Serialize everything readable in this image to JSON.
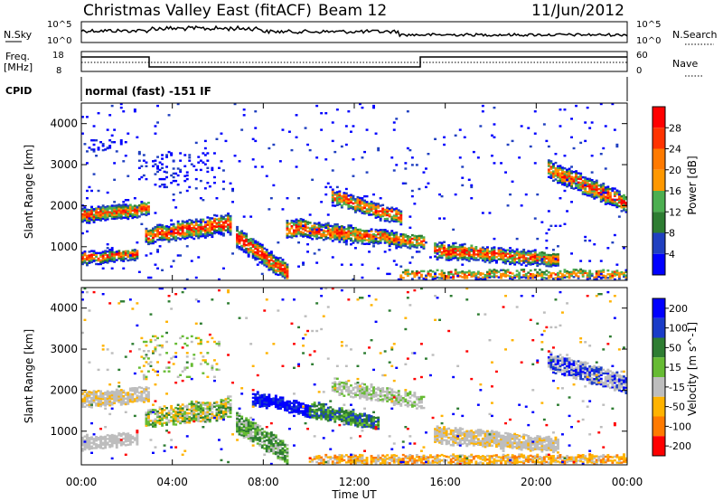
{
  "header": {
    "station": "Christmas Valley East (fitACF)",
    "beam": "Beam 12",
    "date": "11/Jun/2012"
  },
  "status_panels": {
    "nsky_label": "N.Sky",
    "nsky_ticks": [
      "10^5",
      "10^0"
    ],
    "nsearch_label": "N.Search",
    "nsearch_ticks": [
      "10^5",
      "10^0"
    ],
    "freq_label_1": "Freq.",
    "freq_label_2": "[MHz]",
    "freq_ticks": [
      "18",
      "8"
    ],
    "nave_label": "Nave",
    "nave_ticks": [
      "60",
      "0"
    ],
    "cpid_label": "CPID",
    "cpid_text": "normal (fast) -151 IF"
  },
  "time_axis": {
    "label": "Time UT",
    "ticks": [
      "00:00",
      "04:00",
      "08:00",
      "12:00",
      "16:00",
      "20:00",
      "00:00"
    ]
  },
  "chart_data": [
    {
      "type": "heatmap",
      "quantity": "Power",
      "colorbar_label": "Power [dB]",
      "ylabel": "Slant Range [km]",
      "yticks": [
        "1000",
        "2000",
        "3000",
        "4000"
      ],
      "ylim": [
        180,
        4500
      ],
      "xlim_hours": [
        0,
        24
      ],
      "colorbar_ticks": [
        "4",
        "8",
        "12",
        "16",
        "20",
        "24",
        "28"
      ],
      "colors": [
        "#0000ff",
        "#2040c0",
        "#2e7d32",
        "#4caf50",
        "#ff9800",
        "#ff7a00",
        "#ff3300",
        "#ff0000"
      ]
    },
    {
      "type": "heatmap",
      "quantity": "Velocity",
      "colorbar_label": "Velocity [m s^-1]",
      "ylabel": "Slant Range [km]",
      "yticks": [
        "1000",
        "2000",
        "3000",
        "4000"
      ],
      "ylim": [
        180,
        4500
      ],
      "xlim_hours": [
        0,
        24
      ],
      "colorbar_ticks": [
        "200",
        "100",
        "50",
        "15",
        "-15",
        "-50",
        "-100",
        "-200"
      ],
      "colors": [
        "#0000ff",
        "#1a3cc8",
        "#2e7d32",
        "#66bb33",
        "#bdbdbd",
        "#ffb300",
        "#ff7a00",
        "#ff0000"
      ]
    }
  ]
}
